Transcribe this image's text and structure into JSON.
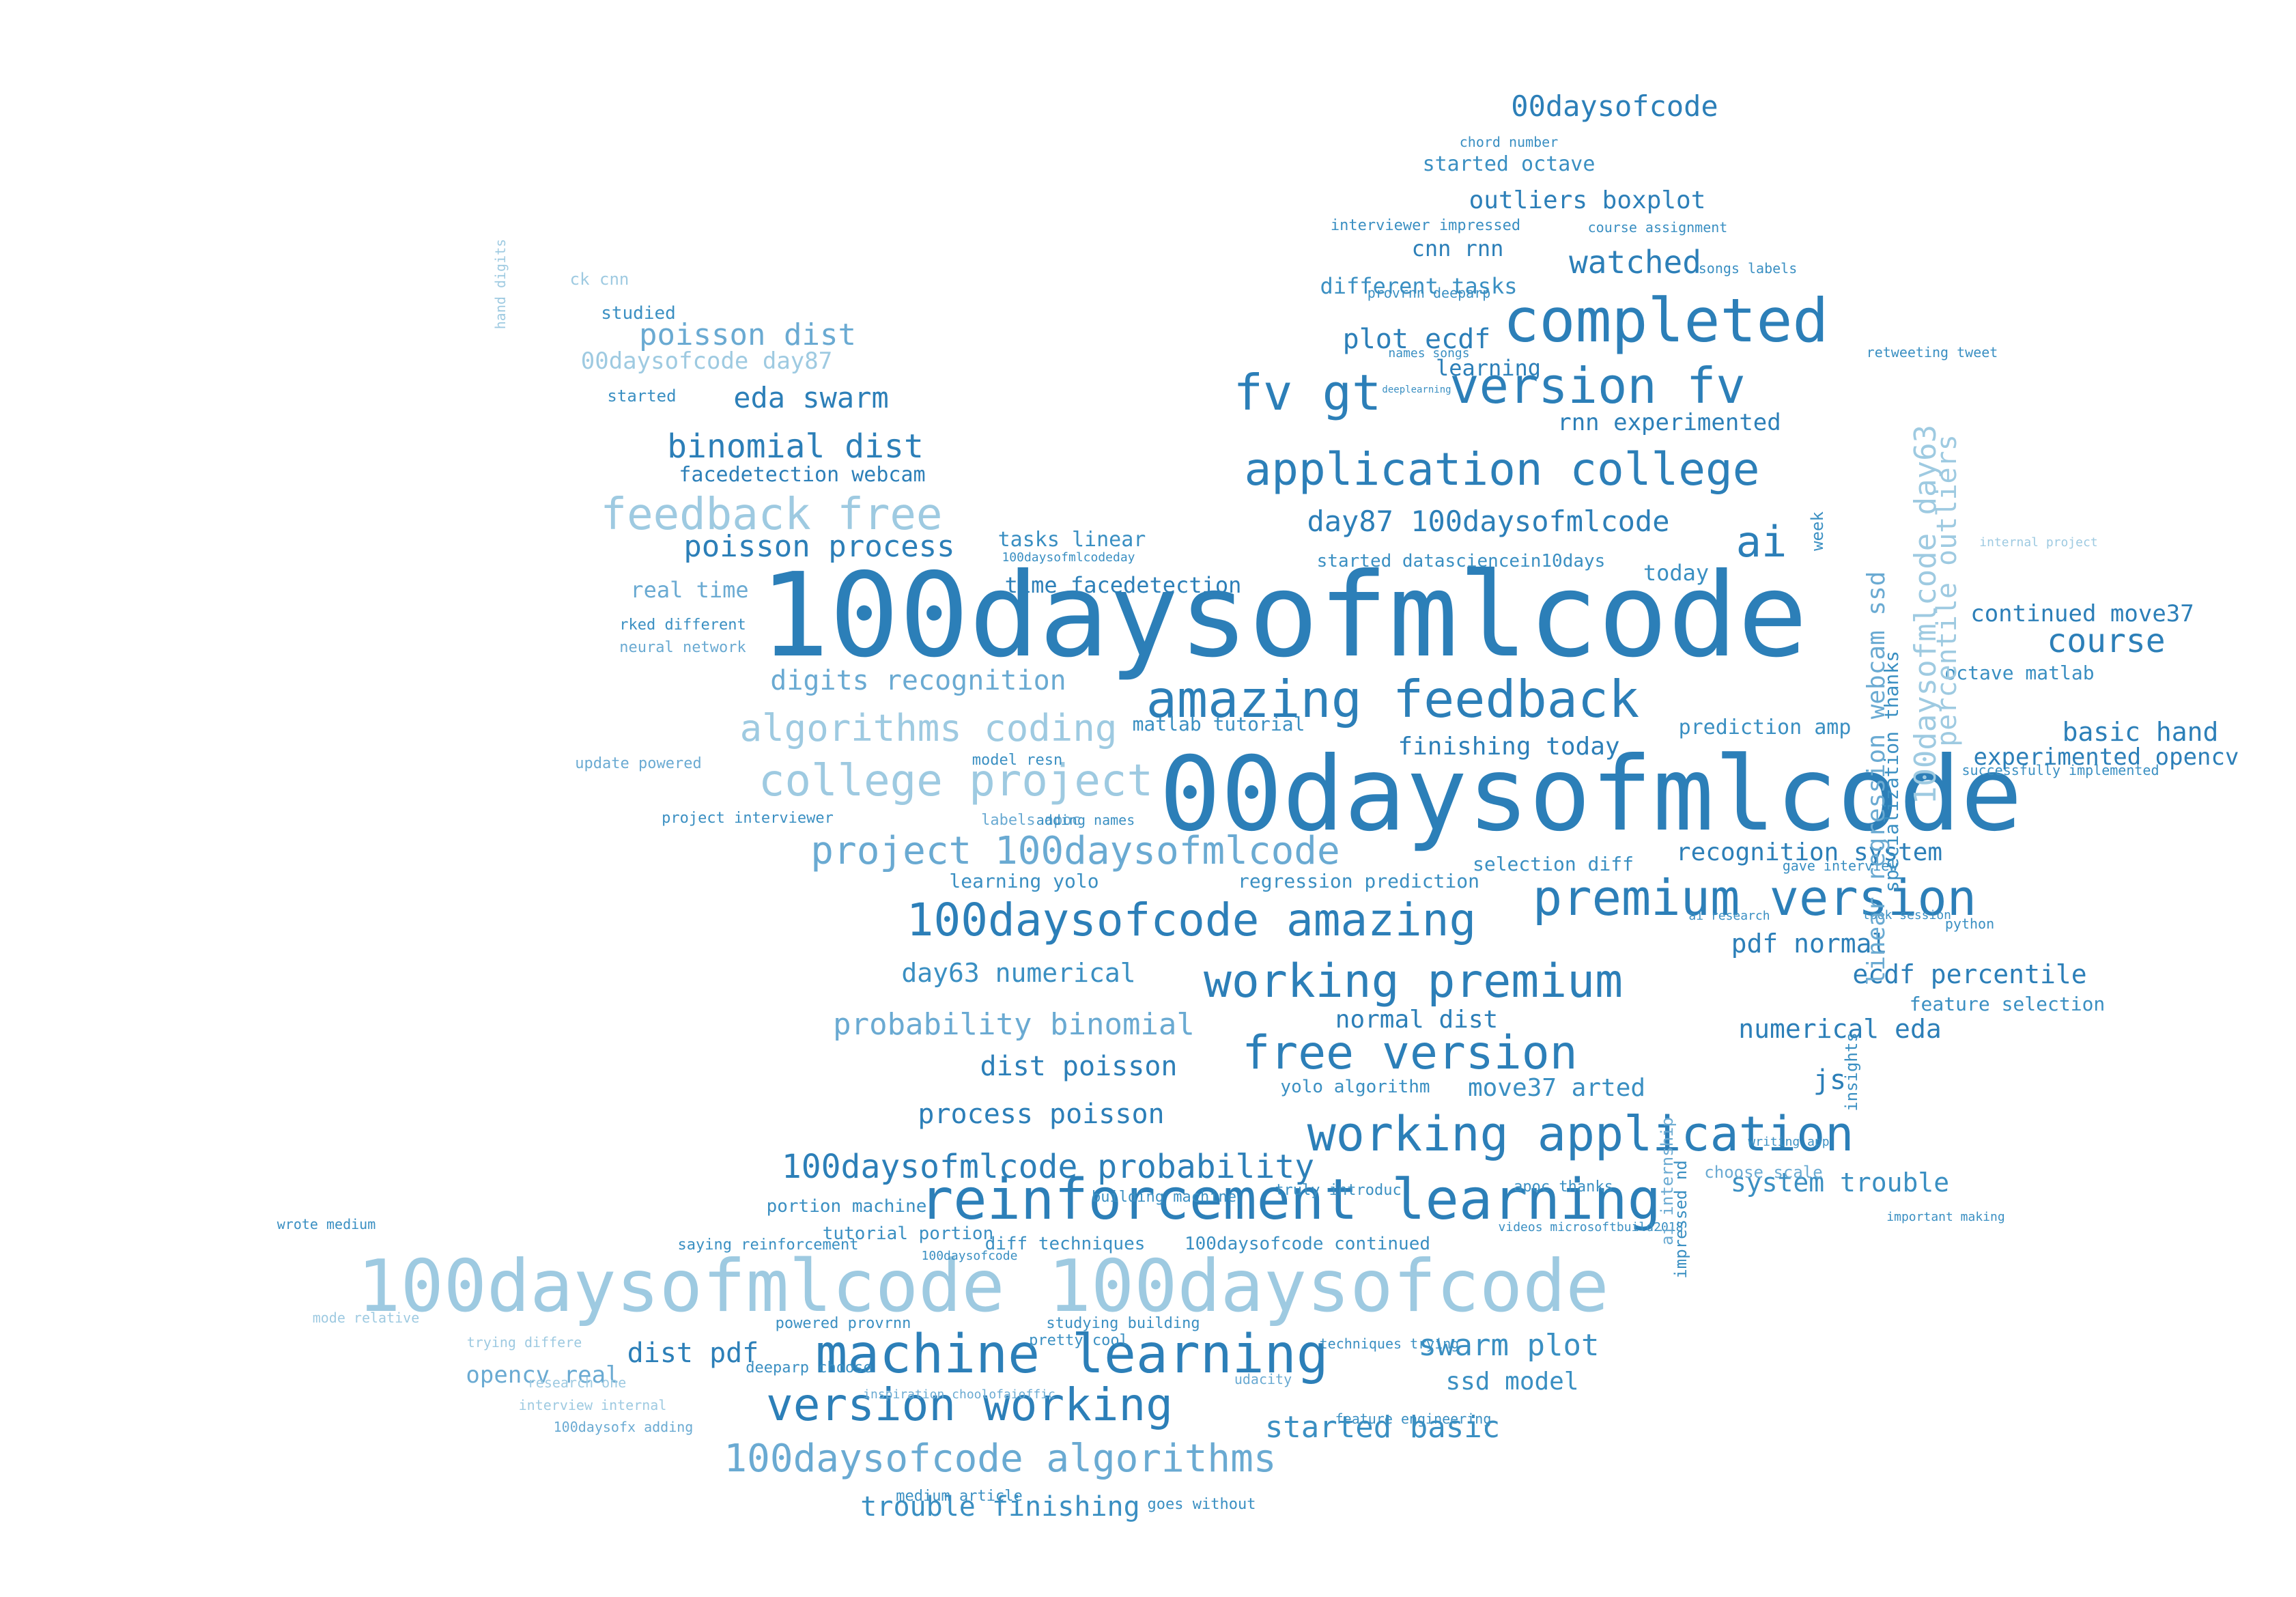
{
  "image": {
    "kind": "word-cloud",
    "shape": "twitter-bird",
    "background": "#ffffff",
    "palette": [
      "#2c7fb8",
      "#3a8fc2",
      "#6aaad2",
      "#9ecae1",
      "#c6dbef"
    ]
  },
  "words": [
    {
      "text": "100daysofmlcode",
      "tier": 1
    },
    {
      "text": "00daysofmlcode",
      "tier": 1
    },
    {
      "text": "100daysofmlcode 100daysofcode",
      "tier": 4
    },
    {
      "text": "completed",
      "tier": 1
    },
    {
      "text": "reinforcement learning",
      "tier": 1
    },
    {
      "text": "machine learning",
      "tier": 1
    },
    {
      "text": "amazing feedback",
      "tier": 1
    },
    {
      "text": "premium version",
      "tier": 1
    },
    {
      "text": "version fv",
      "tier": 1
    },
    {
      "text": "fv gt",
      "tier": 1
    },
    {
      "text": "application college",
      "tier": 1
    },
    {
      "text": "working premium",
      "tier": 1
    },
    {
      "text": "working application",
      "tier": 1
    },
    {
      "text": "free version",
      "tier": 1
    },
    {
      "text": "version working",
      "tier": 1
    },
    {
      "text": "100daysofcode amazing",
      "tier": 1
    },
    {
      "text": "college project",
      "tier": 4
    },
    {
      "text": "feedback free",
      "tier": 4
    },
    {
      "text": "project 100daysofmlcode",
      "tier": 3
    },
    {
      "text": "100daysofcode algorithms",
      "tier": 3
    },
    {
      "text": "algorithms coding",
      "tier": 4
    },
    {
      "text": "100daysofmlcode probability",
      "tier": 1
    },
    {
      "text": "ai",
      "tier": 1
    },
    {
      "text": "course",
      "tier": 1
    },
    {
      "text": "00daysofcode",
      "tier": 1
    },
    {
      "text": "watched",
      "tier": 1
    },
    {
      "text": "swarm plot",
      "tier": 2
    },
    {
      "text": "started basic",
      "tier": 2
    },
    {
      "text": "trouble finishing",
      "tier": 2
    },
    {
      "text": "dist pdf",
      "tier": 1
    },
    {
      "text": "process poisson",
      "tier": 1
    },
    {
      "text": "dist poisson",
      "tier": 1
    },
    {
      "text": "probability binomial",
      "tier": 3
    },
    {
      "text": "day63 numerical",
      "tier": 2
    },
    {
      "text": "pdf normal",
      "tier": 1
    },
    {
      "text": "ecdf percentile",
      "tier": 1
    },
    {
      "text": "numerical eda",
      "tier": 1
    },
    {
      "text": "normal dist",
      "tier": 1
    },
    {
      "text": "recognition system",
      "tier": 1
    },
    {
      "text": "system trouble",
      "tier": 2
    },
    {
      "text": "digits recognition",
      "tier": 3
    },
    {
      "text": "basic hand",
      "tier": 1
    },
    {
      "text": "continued move37",
      "tier": 1
    },
    {
      "text": "experimented opencv",
      "tier": 1
    },
    {
      "text": "finishing today",
      "tier": 1
    },
    {
      "text": "day87 100daysofmlcode",
      "tier": 1
    },
    {
      "text": "plot ecdf",
      "tier": 1
    },
    {
      "text": "outliers boxplot",
      "tier": 1
    },
    {
      "text": "cnn rnn",
      "tier": 1
    },
    {
      "text": "rnn experimented",
      "tier": 1
    },
    {
      "text": "learning",
      "tier": 1
    },
    {
      "text": "binomial dist",
      "tier": 1
    },
    {
      "text": "eda swarm",
      "tier": 1
    },
    {
      "text": "poisson dist",
      "tier": 3
    },
    {
      "text": "00daysofcode day87",
      "tier": 4
    },
    {
      "text": "poisson process",
      "tier": 1
    },
    {
      "text": "tasks linear",
      "tier": 2
    },
    {
      "text": "time facedetection",
      "tier": 1
    },
    {
      "text": "real time",
      "tier": 3
    },
    {
      "text": "facedetection webcam",
      "tier": 1
    },
    {
      "text": "different tasks",
      "tier": 2
    },
    {
      "text": "started octave",
      "tier": 2
    },
    {
      "text": "move37 arted",
      "tier": 2
    },
    {
      "text": "js",
      "tier": 1
    },
    {
      "text": "ssd model",
      "tier": 2
    },
    {
      "text": "opencv real",
      "tier": 3
    },
    {
      "text": "today",
      "tier": 2
    },
    {
      "text": "prediction amp",
      "tier": 2
    },
    {
      "text": "octave matlab",
      "tier": 2
    },
    {
      "text": "feature selection",
      "tier": 2
    },
    {
      "text": "selection diff",
      "tier": 2
    },
    {
      "text": "regression prediction",
      "tier": 2
    },
    {
      "text": "learning yolo",
      "tier": 2
    },
    {
      "text": "matlab tutorial",
      "tier": 2
    },
    {
      "text": "started datasciencein10days",
      "tier": 2
    },
    {
      "text": "yolo algorithm",
      "tier": 2
    },
    {
      "text": "tutorial portion",
      "tier": 2
    },
    {
      "text": "portion machine",
      "tier": 2
    },
    {
      "text": "diff techniques",
      "tier": 2
    },
    {
      "text": "100daysofcode continued",
      "tier": 2
    },
    {
      "text": "saying reinforcement",
      "tier": 2
    },
    {
      "text": "powered provrnn",
      "tier": 2
    },
    {
      "text": "pretty cool",
      "tier": 2
    },
    {
      "text": "deeparp choose",
      "tier": 2
    },
    {
      "text": "studying building",
      "tier": 2
    },
    {
      "text": "goes without",
      "tier": 2
    },
    {
      "text": "100daysofcode",
      "tier": 2
    },
    {
      "text": "ck cnn",
      "tier": 4
    },
    {
      "text": "studied",
      "tier": 2
    },
    {
      "text": "started",
      "tier": 2
    },
    {
      "text": "rked different",
      "tier": 2
    },
    {
      "text": "neural network",
      "tier": 3
    },
    {
      "text": "update powered",
      "tier": 3
    },
    {
      "text": "labels apoc",
      "tier": 3
    },
    {
      "text": "model resn",
      "tier": 2
    },
    {
      "text": "adding names",
      "tier": 2
    },
    {
      "text": "project interviewer",
      "tier": 2
    },
    {
      "text": "choose scale",
      "tier": 3
    },
    {
      "text": "apoc thanks",
      "tier": 2
    },
    {
      "text": "building machine",
      "tier": 2
    },
    {
      "text": "truly introduc",
      "tier": 2
    },
    {
      "text": "chord number",
      "tier": 2
    },
    {
      "text": "interviewer impressed",
      "tier": 2
    },
    {
      "text": "course assignment",
      "tier": 2
    },
    {
      "text": "songs labels",
      "tier": 2
    },
    {
      "text": "provrnn deeparp",
      "tier": 2
    },
    {
      "text": "names songs",
      "tier": 2
    },
    {
      "text": "retweeting tweet",
      "tier": 2
    },
    {
      "text": "deeplearning",
      "tier": 2
    },
    {
      "text": "100daysofmlcodeday",
      "tier": 2
    },
    {
      "text": "successfully implemented",
      "tier": 2
    },
    {
      "text": "internal project",
      "tier": 4
    },
    {
      "text": "python",
      "tier": 2
    },
    {
      "text": "gave interview",
      "tier": 2
    },
    {
      "text": "ai research",
      "tier": 2
    },
    {
      "text": "took session",
      "tier": 2
    },
    {
      "text": "important making",
      "tier": 2
    },
    {
      "text": "writing app",
      "tier": 2
    },
    {
      "text": "wrote medium",
      "tier": 2
    },
    {
      "text": "mode relative",
      "tier": 4
    },
    {
      "text": "trying differe",
      "tier": 4
    },
    {
      "text": "research one",
      "tier": 4
    },
    {
      "text": "interview internal",
      "tier": 4
    },
    {
      "text": "100daysofx adding",
      "tier": 3
    },
    {
      "text": "udacity",
      "tier": 3
    },
    {
      "text": "feature engineering",
      "tier": 2
    },
    {
      "text": "techniques trying",
      "tier": 2
    },
    {
      "text": "medium article",
      "tier": 2
    },
    {
      "text": "inspiration choolofaioffic",
      "tier": 3
    },
    {
      "text": "videos microsoftbuild2018",
      "tier": 2
    },
    {
      "text": "specialization thanks",
      "tier": 2
    },
    {
      "text": "linear regression webcam ssd",
      "tier": 3
    },
    {
      "text": "100daysofmlcode day63",
      "tier": 4
    },
    {
      "text": "percentile outliers",
      "tier": 4
    },
    {
      "text": "hand digits",
      "tier": 4
    },
    {
      "text": "ai internship",
      "tier": 3
    },
    {
      "text": "impressed nd",
      "tier": 2
    },
    {
      "text": "insights",
      "tier": 2
    },
    {
      "text": "week",
      "tier": 2
    },
    {
      "text": "amp feature",
      "tier": 2
    }
  ]
}
